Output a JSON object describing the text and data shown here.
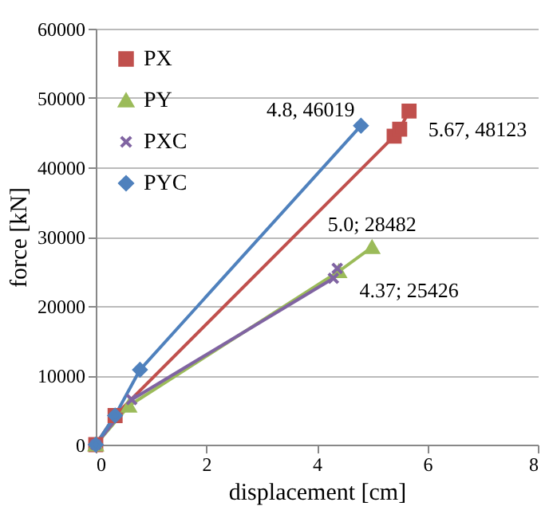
{
  "chart_data": {
    "type": "line",
    "xlabel": "displacement [cm]",
    "ylabel": "force [kN]",
    "xlim": [
      0,
      8
    ],
    "xticks": [
      0,
      2,
      4,
      6,
      8
    ],
    "ylim": [
      0,
      60000
    ],
    "yticks": [
      0,
      10000,
      20000,
      30000,
      40000,
      50000,
      60000
    ],
    "grid": "y",
    "legend": "top left",
    "series": [
      {
        "name": "PX",
        "color": "#c0504d",
        "marker": "square",
        "x": [
          0,
          0.35,
          5.4,
          5.5,
          5.67
        ],
        "values": [
          0,
          4200,
          44500,
          45500,
          48123
        ]
      },
      {
        "name": "PY",
        "color": "#9bbb59",
        "marker": "triangle",
        "x": [
          0,
          0.6,
          4.4,
          5.0
        ],
        "values": [
          0,
          5600,
          25000,
          28482
        ]
      },
      {
        "name": "PXC",
        "color": "#8064a2",
        "marker": "cross",
        "x": [
          0,
          0.65,
          4.3,
          4.37
        ],
        "values": [
          0,
          6500,
          24000,
          25426
        ]
      },
      {
        "name": "PYC",
        "color": "#4f81bd",
        "marker": "diamond",
        "x": [
          0,
          0.35,
          0.8,
          4.8
        ],
        "values": [
          0,
          4200,
          10800,
          46019
        ]
      }
    ],
    "annotations": [
      {
        "text": "4.8, 46019",
        "x": 4.8,
        "y": 46019
      },
      {
        "text": "5.67, 48123",
        "x": 5.67,
        "y": 48123
      },
      {
        "text": "5.0; 28482",
        "x": 5.0,
        "y": 28482
      },
      {
        "text": "4.37; 25426",
        "x": 4.37,
        "y": 25426
      }
    ]
  }
}
